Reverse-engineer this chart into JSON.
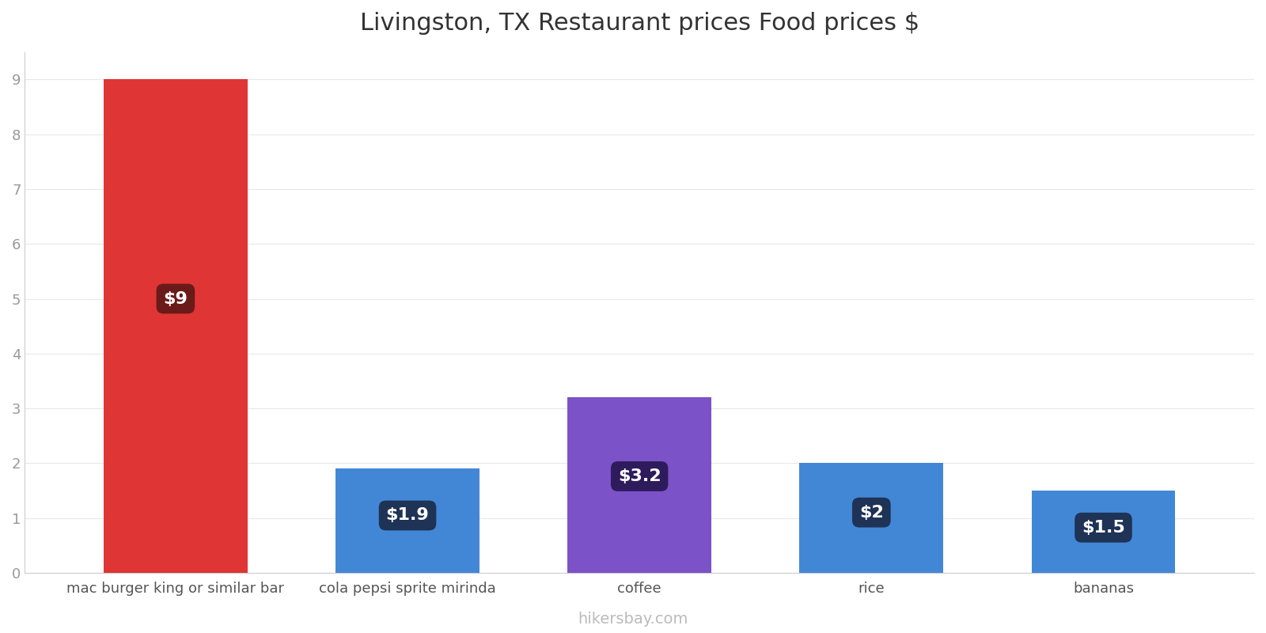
{
  "title": "Livingston, TX Restaurant prices Food prices $",
  "categories": [
    "mac burger king or similar bar",
    "cola pepsi sprite mirinda",
    "coffee",
    "rice",
    "bananas"
  ],
  "values": [
    9,
    1.9,
    3.2,
    2,
    1.5
  ],
  "bar_colors": [
    "#e03535",
    "#4287d6",
    "#7b52c8",
    "#4287d6",
    "#4287d6"
  ],
  "label_texts": [
    "$9",
    "$1.9",
    "$3.2",
    "$2",
    "$1.5"
  ],
  "label_bg_colors": [
    "#6b1a1a",
    "#1e3355",
    "#2e1b5c",
    "#1e3355",
    "#1e3355"
  ],
  "ylim": [
    0,
    9.5
  ],
  "yticks": [
    0,
    1,
    2,
    3,
    4,
    5,
    6,
    7,
    8,
    9
  ],
  "background_color": "#ffffff",
  "watermark": "hikersbay.com",
  "title_fontsize": 22,
  "tick_fontsize": 13,
  "label_fontsize": 16,
  "watermark_fontsize": 14
}
